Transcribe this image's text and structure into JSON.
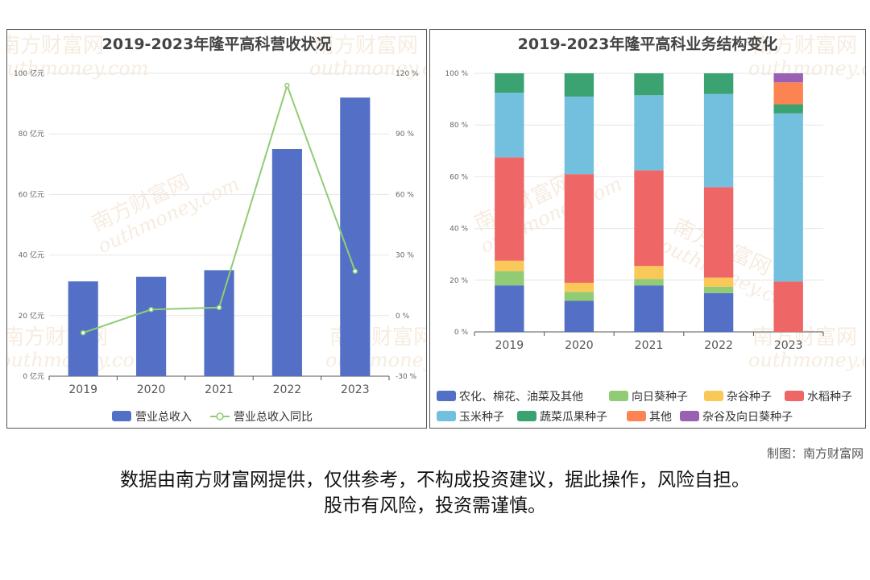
{
  "watermark": {
    "cn": "南方财富网",
    "en": "outhmoney.com"
  },
  "credit": "制图：南方财富网",
  "disclaimer": {
    "line1": "数据由南方财富网提供，仅供参考，不构成投资建议，据此操作，风险自担。",
    "line2": "股市有风险，投资需谨慎。"
  },
  "chart_data": [
    {
      "type": "bar",
      "title": "2019-2023年隆平高科营收状况",
      "categories": [
        "2019",
        "2020",
        "2021",
        "2022",
        "2023"
      ],
      "series": [
        {
          "name": "营业总收入",
          "type": "bar",
          "values": [
            31.3,
            32.8,
            35.0,
            75.0,
            92.0
          ],
          "color": "#5470c6",
          "axis": "left"
        },
        {
          "name": "营业总收入同比",
          "type": "line",
          "values": [
            -8.5,
            3.0,
            4.0,
            114.0,
            22.0
          ],
          "color": "#91cc75",
          "axis": "right"
        }
      ],
      "yaxis_left": {
        "min": 0,
        "max": 100,
        "step": 20,
        "unit": "亿元",
        "ticks": [
          "0 亿元",
          "20 亿元",
          "40 亿元",
          "60 亿元",
          "80 亿元",
          "100 亿元"
        ]
      },
      "yaxis_right": {
        "min": -30,
        "max": 120,
        "step": 30,
        "unit": "%",
        "ticks": [
          "-30 %",
          "0 %",
          "30 %",
          "60 %",
          "90 %",
          "120 %"
        ]
      },
      "legend": "bottom"
    },
    {
      "type": "bar",
      "stacked": true,
      "title": "2019-2023年隆平高科业务结构变化",
      "categories": [
        "2019",
        "2020",
        "2021",
        "2022",
        "2023"
      ],
      "yaxis": {
        "min": 0,
        "max": 100,
        "step": 20,
        "ticks": [
          "0 %",
          "20 %",
          "40 %",
          "60 %",
          "80 %",
          "100 %"
        ]
      },
      "series": [
        {
          "name": "农化、棉花、油菜及其他",
          "color": "#5470c6",
          "values": [
            18,
            12,
            18,
            15,
            0
          ]
        },
        {
          "name": "向日葵种子",
          "color": "#91cc75",
          "values": [
            5.5,
            3.5,
            2.5,
            2.5,
            0
          ]
        },
        {
          "name": "杂谷种子",
          "color": "#fac858",
          "values": [
            4,
            3.5,
            5,
            3.5,
            0
          ]
        },
        {
          "name": "水稻种子",
          "color": "#ee6666",
          "values": [
            40,
            42,
            37,
            35,
            19.5
          ]
        },
        {
          "name": "玉米种子",
          "color": "#73c0de",
          "values": [
            25,
            30,
            29,
            36,
            65
          ]
        },
        {
          "name": "蔬菜瓜果种子",
          "color": "#3ba272",
          "values": [
            7.5,
            9,
            8.5,
            8,
            3.5
          ]
        },
        {
          "name": "其他",
          "color": "#fc8452",
          "values": [
            0,
            0,
            0,
            0,
            8.5
          ]
        },
        {
          "name": "杂谷及向日葵种子",
          "color": "#9a60b4",
          "values": [
            0,
            0,
            0,
            0,
            3.5
          ]
        }
      ],
      "legend": "bottom"
    }
  ]
}
